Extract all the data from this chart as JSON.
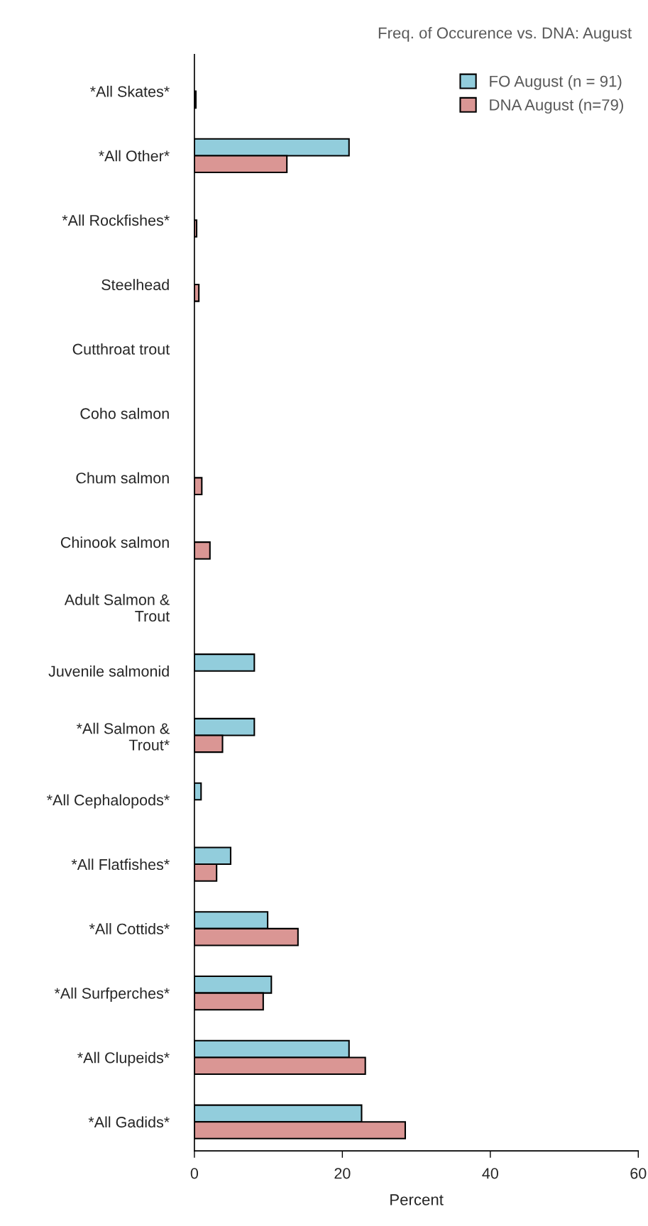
{
  "chart_data": {
    "type": "bar",
    "orientation": "horizontal",
    "title": "Freq. of Occurence vs. DNA: August",
    "xlabel": "Percent",
    "categories": [
      "*All Skates*",
      "*All Other*",
      "*All Rockfishes*",
      "Steelhead",
      "Cutthroat trout",
      "Coho salmon",
      "Chum salmon",
      "Chinook salmon",
      "Adult Salmon &\nTrout",
      "Juvenile salmonid",
      "*All Salmon &\nTrout*",
      "*All Cephalopods*",
      "*All Flatfishes*",
      "*All Cottids*",
      "*All Surfperches*",
      "*All Clupeids*",
      "*All Gadids*"
    ],
    "series": [
      {
        "name": "FO August (n = 91)",
        "color": "#92cddc",
        "values": [
          null,
          20.9,
          null,
          null,
          null,
          null,
          null,
          null,
          null,
          8.1,
          8.1,
          0.9,
          4.9,
          9.9,
          10.4,
          20.9,
          22.6
        ]
      },
      {
        "name": "DNA August (n=79)",
        "color": "#da9694",
        "values": [
          0.2,
          12.5,
          0.3,
          0.6,
          null,
          null,
          1.0,
          2.1,
          null,
          null,
          3.8,
          null,
          3.0,
          14.0,
          9.3,
          23.1,
          28.5
        ]
      }
    ],
    "xlim": [
      0,
      60
    ],
    "xticks": [
      0,
      20,
      40,
      60
    ],
    "grid": false,
    "legend": "top right"
  }
}
